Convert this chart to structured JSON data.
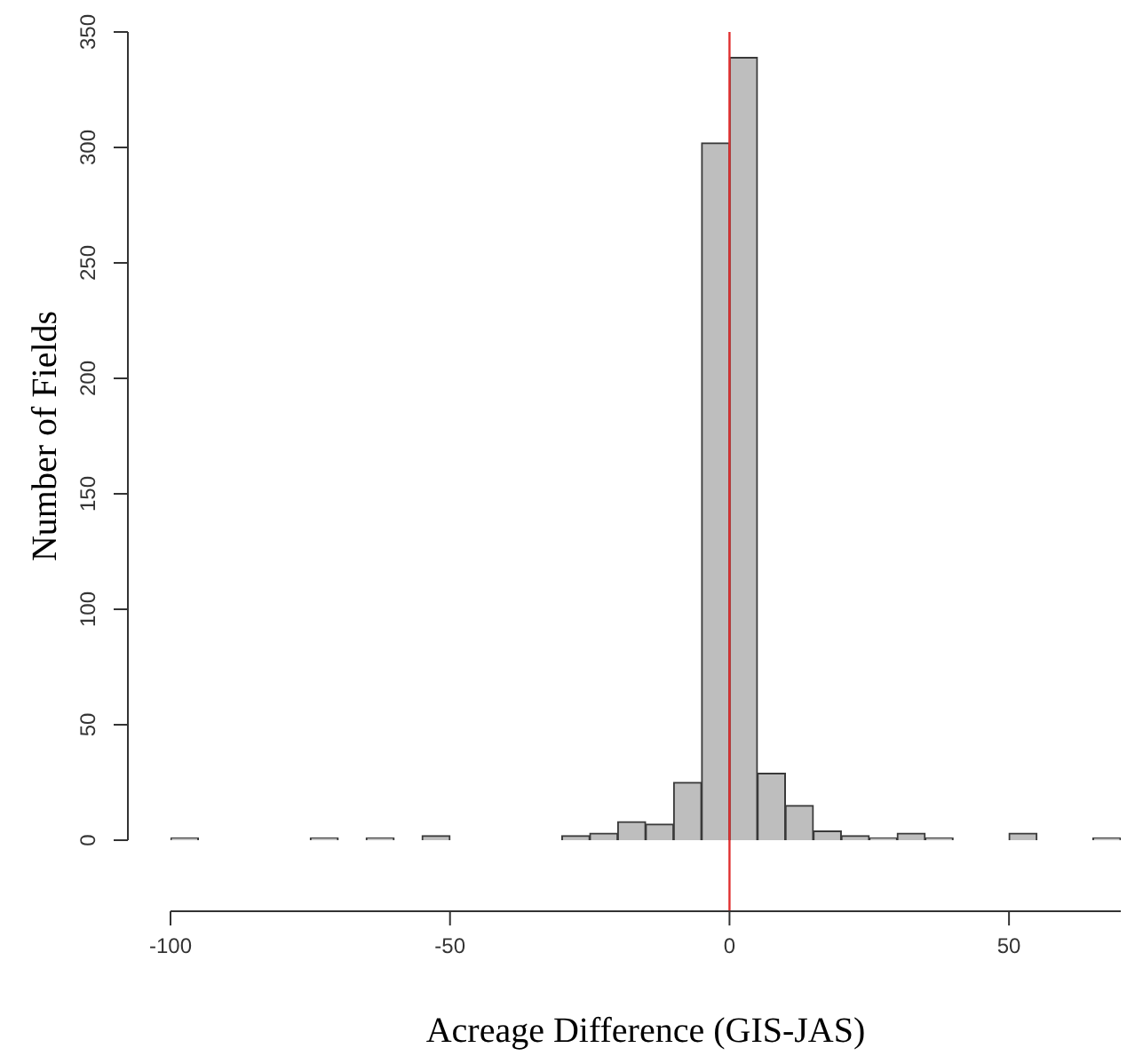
{
  "chart_data": {
    "type": "histogram",
    "xlabel": "Acreage Difference (GIS-JAS)",
    "ylabel": "Number of Fields",
    "bins": [
      -100,
      -95,
      -90,
      -85,
      -80,
      -75,
      -70,
      -65,
      -60,
      -55,
      -50,
      -45,
      -40,
      -35,
      -30,
      -25,
      -20,
      -15,
      -10,
      -5,
      0,
      5,
      10,
      15,
      20,
      25,
      30,
      35,
      40,
      45,
      50,
      55,
      60,
      65,
      70
    ],
    "values": [
      1,
      0,
      0,
      0,
      0,
      1,
      0,
      1,
      0,
      2,
      0,
      0,
      0,
      0,
      2,
      3,
      8,
      7,
      25,
      302,
      339,
      29,
      15,
      4,
      2,
      1,
      3,
      1,
      0,
      0,
      3,
      0,
      0,
      1
    ],
    "color": "#bebebe",
    "xlim": [
      -100,
      70
    ],
    "ylim": [
      0,
      350
    ],
    "xticks": [
      -100,
      -50,
      0,
      50
    ],
    "yticks": [
      0,
      50,
      100,
      150,
      200,
      250,
      300,
      350
    ],
    "ref_lines": [
      {
        "axis": "x",
        "value": 0,
        "color": "#e03030"
      }
    ],
    "grid": false,
    "legend": false
  }
}
